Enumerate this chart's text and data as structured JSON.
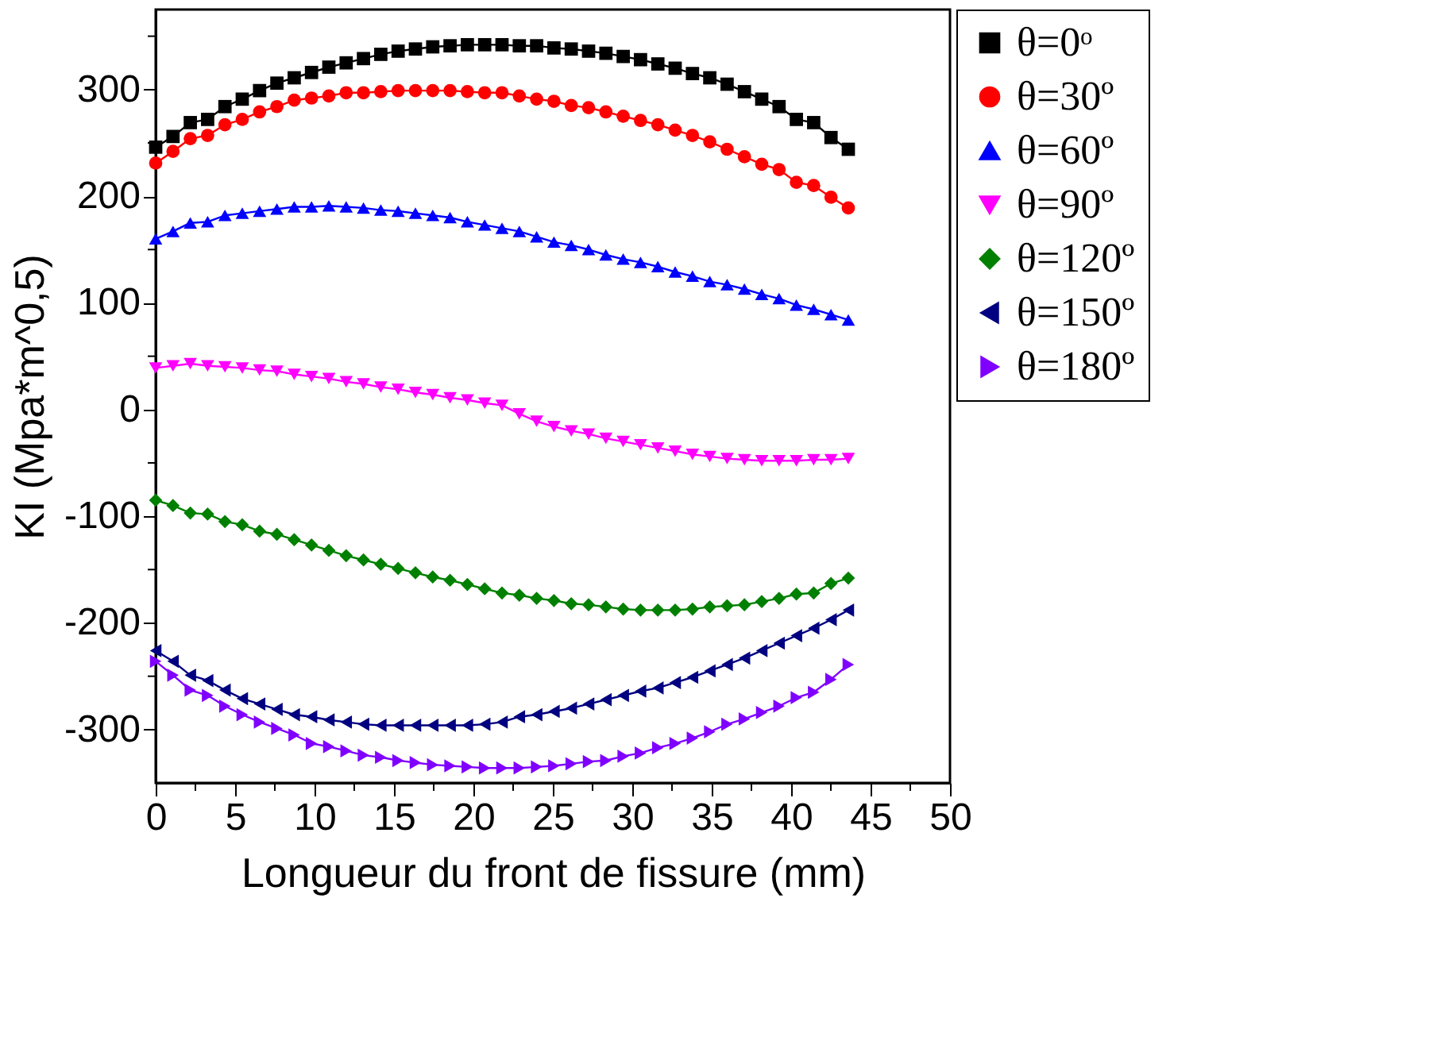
{
  "chart_data": {
    "type": "line",
    "xlabel": "Longueur du front de fissure (mm)",
    "ylabel": "KI (Mpa*m^0,5)",
    "x": [
      0,
      1.09,
      2.18,
      3.27,
      4.36,
      5.45,
      6.54,
      7.63,
      8.72,
      9.81,
      10.9,
      11.99,
      13.08,
      14.17,
      15.26,
      16.35,
      17.44,
      18.53,
      19.62,
      20.71,
      21.8,
      22.89,
      23.98,
      25.07,
      26.16,
      27.25,
      28.34,
      29.43,
      30.52,
      31.61,
      32.7,
      33.79,
      34.88,
      35.97,
      37.06,
      38.15,
      39.24,
      40.33,
      41.42,
      42.51,
      43.6
    ],
    "xlim": [
      0,
      50
    ],
    "xticks": [
      0,
      {
        "value": 2.5,
        "label": null
      },
      5,
      {
        "value": 7.5,
        "label": null
      },
      10,
      {
        "value": 12.5,
        "label": null
      },
      15,
      {
        "value": 17.5,
        "label": null
      },
      20,
      {
        "value": 22.5,
        "label": null
      },
      25,
      {
        "value": 27.5,
        "label": null
      },
      30,
      {
        "value": 32.5,
        "label": null
      },
      35,
      {
        "value": 37.5,
        "label": null
      },
      40,
      {
        "value": 42.5,
        "label": null
      },
      45,
      {
        "value": 47.5,
        "label": null
      },
      50
    ],
    "ylim": [
      -350,
      375
    ],
    "yticks": [
      -300,
      {
        "value": -250,
        "label": null
      },
      -200,
      {
        "value": -150,
        "label": null
      },
      -100,
      {
        "value": -50,
        "label": null
      },
      0,
      {
        "value": 50,
        "label": null
      },
      100,
      {
        "value": 150,
        "label": null
      },
      200,
      {
        "value": 250,
        "label": null
      },
      300,
      {
        "value": 350,
        "label": null
      }
    ],
    "grid": false,
    "legend": "right",
    "line_style": "solid",
    "series": [
      {
        "name": "θ=0ᵒ",
        "color": "#000000",
        "marker": "square",
        "values": [
          246,
          256,
          269,
          272,
          284,
          291,
          299,
          306,
          311,
          316,
          321,
          325,
          329,
          333,
          336,
          338,
          340,
          341,
          342,
          342,
          342,
          341,
          341,
          339,
          338,
          336,
          334,
          331,
          328,
          324,
          320,
          315,
          311,
          305,
          298,
          291,
          284,
          272,
          269,
          255,
          244
        ]
      },
      {
        "name": "θ=30º",
        "color": "#ff0000",
        "marker": "circle",
        "values": [
          231,
          242,
          254,
          257,
          267,
          272,
          279,
          284,
          290,
          292,
          294,
          297,
          297,
          298,
          299,
          299,
          299,
          299,
          298,
          297,
          297,
          294,
          291,
          289,
          285,
          283,
          279,
          275,
          271,
          267,
          262,
          257,
          251,
          244,
          237,
          230,
          225,
          213,
          210,
          199,
          189
        ]
      },
      {
        "name": "θ=60º",
        "color": "#0000ff",
        "marker": "triangle-up",
        "values": [
          160,
          167,
          175,
          176,
          182,
          184,
          186,
          188,
          190,
          190,
          191,
          190,
          189,
          187,
          186,
          184,
          182,
          180,
          176,
          173,
          170,
          167,
          162,
          157,
          154,
          150,
          145,
          141,
          138,
          134,
          129,
          125,
          120,
          117,
          113,
          108,
          104,
          98,
          94,
          89,
          84
        ]
      },
      {
        "name": "θ=90º",
        "color": "#ff00ff",
        "marker": "triangle-down",
        "values": [
          39,
          41,
          43,
          41,
          40,
          39,
          37,
          36,
          33,
          31,
          29,
          26,
          24,
          21,
          19,
          16,
          14,
          11,
          9,
          6,
          4,
          -4,
          -11,
          -16,
          -20,
          -23,
          -27,
          -30,
          -33,
          -36,
          -39,
          -42,
          -44,
          -46,
          -47,
          -48,
          -48,
          -48,
          -47,
          -47,
          -46
        ]
      },
      {
        "name": "θ=120º",
        "color": "#008000",
        "marker": "diamond",
        "values": [
          -85,
          -90,
          -97,
          -98,
          -105,
          -108,
          -114,
          -117,
          -122,
          -127,
          -132,
          -137,
          -141,
          -145,
          -149,
          -153,
          -157,
          -160,
          -164,
          -168,
          -172,
          -174,
          -177,
          -179,
          -182,
          -183,
          -185,
          -187,
          -188,
          -188,
          -188,
          -187,
          -185,
          -184,
          -183,
          -180,
          -177,
          -173,
          -172,
          -163,
          -158
        ]
      },
      {
        "name": "θ=150º",
        "color": "#000080",
        "marker": "triangle-left",
        "values": [
          -226,
          -236,
          -249,
          -254,
          -263,
          -271,
          -276,
          -281,
          -286,
          -288,
          -291,
          -293,
          -295,
          -296,
          -296,
          -296,
          -296,
          -296,
          -296,
          -295,
          -293,
          -288,
          -286,
          -283,
          -280,
          -276,
          -272,
          -268,
          -264,
          -261,
          -256,
          -251,
          -245,
          -239,
          -233,
          -226,
          -219,
          -212,
          -205,
          -197,
          -188
        ]
      },
      {
        "name": "θ=180º",
        "color": "#8000ff",
        "marker": "triangle-right",
        "values": [
          -236,
          -249,
          -263,
          -268,
          -278,
          -286,
          -293,
          -299,
          -305,
          -313,
          -316,
          -320,
          -324,
          -326,
          -329,
          -331,
          -333,
          -334,
          -335,
          -336,
          -336,
          -336,
          -335,
          -334,
          -332,
          -330,
          -329,
          -325,
          -322,
          -317,
          -313,
          -308,
          -302,
          -295,
          -290,
          -284,
          -278,
          -270,
          -265,
          -253,
          -239
        ]
      }
    ]
  }
}
